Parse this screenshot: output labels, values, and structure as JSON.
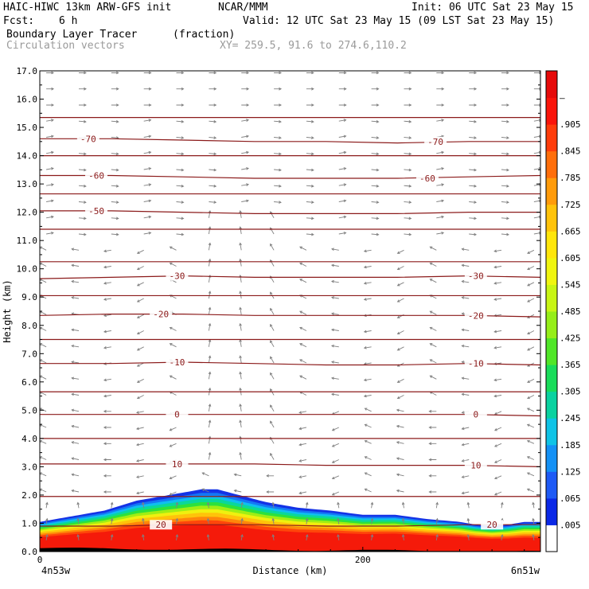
{
  "header": {
    "model": "HAIC-HIWC 13km ARW-GFS init",
    "center": "NCAR/MMM",
    "init": "Init: 06 UTC Sat 23 May 15",
    "fcst_label": "Fcst:",
    "fcst_value": "6 h",
    "valid": "Valid: 12 UTC Sat 23 May 15 (09 LST Sat 23 May 15)",
    "field": "Boundary Layer Tracer",
    "units": "(fraction)",
    "overlay": "Circulation vectors",
    "xy": "XY= 259.5, 91.6 to 274.6,110.2"
  },
  "chart_data": {
    "type": "area",
    "title": "Boundary Layer Tracer",
    "units": "(fraction)",
    "xlabel": "Distance (km)",
    "ylabel": "Height (km)",
    "xlim": [
      0,
      310
    ],
    "ylim": [
      0,
      17
    ],
    "x_tick_labels": [
      "0",
      "200"
    ],
    "x_end_labels": {
      "left": "4n53w",
      "right": "6n51w"
    },
    "y_ticks": [
      0.0,
      1.0,
      2.0,
      3.0,
      4.0,
      5.0,
      6.0,
      7.0,
      8.0,
      9.0,
      10.0,
      11.0,
      12.0,
      13.0,
      14.0,
      15.0,
      16.0,
      17.0
    ],
    "y_tick_labels": [
      "0.0",
      "1.0",
      "2.0",
      "3.0",
      "4.0",
      "5.0",
      "6.0",
      "7.0",
      "8.0",
      "9.0",
      "10.0",
      "11.0",
      "12.0",
      "13.0",
      "14.0",
      "15.0",
      "16.0",
      "17.0"
    ],
    "colorbar": {
      "labels": [
        ".005",
        ".065",
        ".125",
        ".185",
        ".245",
        ".305",
        ".365",
        ".425",
        ".485",
        ".545",
        ".605",
        ".665",
        ".725",
        ".785",
        ".845",
        ".905",
        "–"
      ],
      "colors": [
        "#ffffff",
        "#0a28e6",
        "#1e5af5",
        "#1491f5",
        "#0fc3e6",
        "#0ad2a0",
        "#19dc5a",
        "#50e628",
        "#96ee19",
        "#c8f514",
        "#f0f50f",
        "#ffe60a",
        "#ffc30a",
        "#ff9b0a",
        "#ff6e0a",
        "#ff3c0a",
        "#fa140a",
        "#e60a0a"
      ]
    },
    "tracer_top_km": {
      "x_km": [
        0,
        10,
        20,
        40,
        60,
        80,
        90,
        100,
        110,
        120,
        140,
        160,
        180,
        200,
        220,
        240,
        260,
        270,
        280,
        290,
        300,
        310
      ],
      "h": [
        1.05,
        1.15,
        1.25,
        1.45,
        1.8,
        2.0,
        2.1,
        2.2,
        2.2,
        2.05,
        1.75,
        1.55,
        1.45,
        1.3,
        1.3,
        1.15,
        1.05,
        0.95,
        0.9,
        0.95,
        1.05,
        1.05
      ]
    },
    "isotherms_C": [
      {
        "value": "-70",
        "label_x_km": [
          30,
          245
        ],
        "h": [
          14.6,
          14.6,
          14.55,
          14.5,
          14.5,
          14.45,
          14.5,
          14.5
        ]
      },
      {
        "value": "-60",
        "label_x_km": [
          35,
          240
        ],
        "h": [
          13.3,
          13.3,
          13.25,
          13.2,
          13.2,
          13.2,
          13.25,
          13.3
        ]
      },
      {
        "value": "-50",
        "label_x_km": [
          35
        ],
        "h": [
          12.05,
          12.05,
          12.0,
          11.95,
          11.95,
          11.95,
          12.0,
          12.0
        ]
      },
      {
        "value": "-30",
        "label_x_km": [
          85,
          270
        ],
        "h": [
          9.65,
          9.7,
          9.75,
          9.7,
          9.7,
          9.7,
          9.75,
          9.7
        ]
      },
      {
        "value": "-20",
        "label_x_km": [
          75,
          270
        ],
        "h": [
          8.35,
          8.4,
          8.4,
          8.35,
          8.35,
          8.35,
          8.35,
          8.3
        ]
      },
      {
        "value": "-10",
        "label_x_km": [
          85,
          270
        ],
        "h": [
          6.65,
          6.65,
          6.7,
          6.65,
          6.6,
          6.6,
          6.65,
          6.6
        ]
      },
      {
        "value": "0",
        "label_x_km": [
          85,
          270
        ],
        "h": [
          4.85,
          4.85,
          4.85,
          4.85,
          4.85,
          4.85,
          4.85,
          4.8
        ]
      },
      {
        "value": "10",
        "label_x_km": [
          85,
          270
        ],
        "h": [
          3.1,
          3.1,
          3.1,
          3.1,
          3.05,
          3.05,
          3.05,
          3.0
        ]
      },
      {
        "value": "20",
        "label_x_km": [
          75,
          280
        ],
        "h": [
          0.9,
          0.9,
          0.95,
          0.95,
          0.9,
          0.9,
          0.95,
          0.95
        ]
      }
    ],
    "extra_isotherm_h_km": [
      15.35,
      14.0,
      12.65,
      11.4,
      10.25,
      9.05,
      7.5,
      5.65,
      4.0,
      1.95
    ],
    "grid": false
  }
}
